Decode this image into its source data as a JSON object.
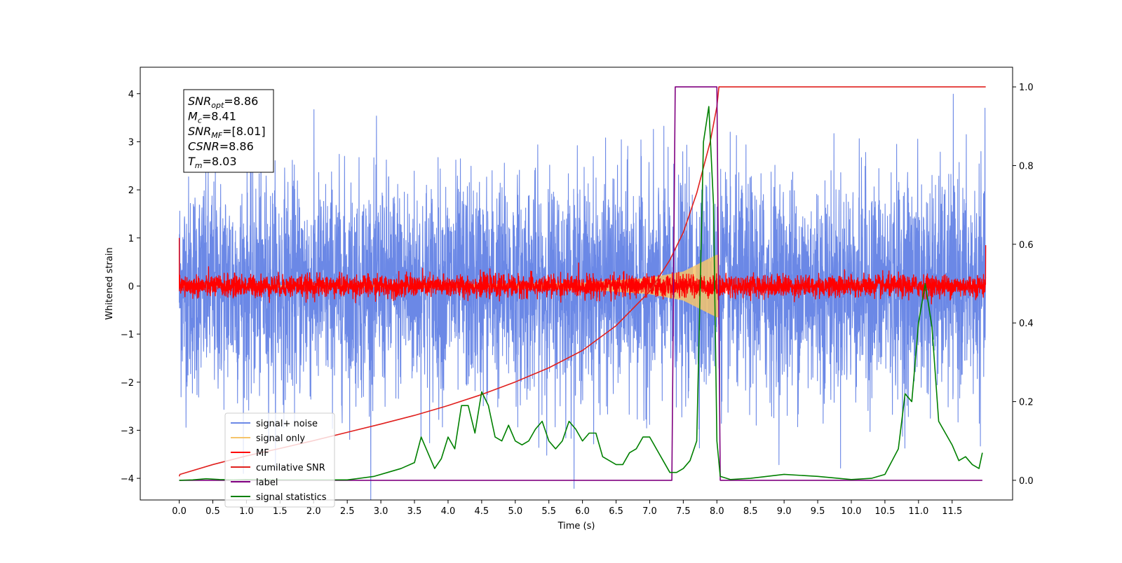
{
  "chart_data": {
    "type": "line",
    "title": "",
    "xlabel": "Time (s)",
    "ylabel": "Whitened strain",
    "y2label": "",
    "xlim": [
      -0.58,
      12.4
    ],
    "ylim": [
      -4.45,
      4.55
    ],
    "y2lim": [
      -0.05,
      1.05
    ],
    "x_ticks": [
      0.0,
      0.5,
      1.0,
      1.5,
      2.0,
      2.5,
      3.0,
      3.5,
      4.0,
      4.5,
      5.0,
      5.5,
      6.0,
      6.5,
      7.0,
      7.5,
      8.0,
      8.5,
      9.0,
      9.5,
      10.0,
      10.5,
      11.0,
      11.5
    ],
    "x_tick_labels": [
      "0.0",
      "0.5",
      "1.0",
      "1.5",
      "2.0",
      "2.5",
      "3.0",
      "3.5",
      "4.0",
      "4.5",
      "5.0",
      "5.5",
      "6.0",
      "6.5",
      "7.0",
      "7.5",
      "8.0",
      "8.5",
      "9.0",
      "9.5",
      "10.0",
      "10.5",
      "11.0",
      "11.5"
    ],
    "y_ticks": [
      -4,
      -3,
      -2,
      -1,
      0,
      1,
      2,
      3,
      4
    ],
    "y_tick_labels": [
      "−4",
      "−3",
      "−2",
      "−1",
      "0",
      "1",
      "2",
      "3",
      "4"
    ],
    "y2_ticks": [
      0.0,
      0.2,
      0.4,
      0.6,
      0.8,
      1.0
    ],
    "y2_tick_labels": [
      "0.0",
      "0.2",
      "0.4",
      "0.6",
      "0.8",
      "1.0"
    ],
    "grid": false,
    "legend_position": "lower-left",
    "annotation": {
      "position": "top-left",
      "lines": [
        {
          "sym": "SNR",
          "sub": "opt",
          "value": "=8.86"
        },
        {
          "sym": "M",
          "sub": "c",
          "value": "=8.41"
        },
        {
          "sym": "SNR",
          "sub": "MF",
          "value": "=[8.01]"
        },
        {
          "sym": "CSNR",
          "sub": "",
          "value": "=8.86"
        },
        {
          "sym": "T",
          "sub": "m",
          "value": "=8.03"
        }
      ]
    },
    "series": [
      {
        "name": "signal+ noise",
        "axis": "left",
        "color": "#6b88e6",
        "style": "noise",
        "x_range": [
          0.0,
          12.0
        ],
        "sigma": 1.0,
        "description_values": {
          "typical_peak": 2.5,
          "max": 4.2,
          "min": -3.8
        }
      },
      {
        "name": "signal only",
        "axis": "left",
        "color": "#f5c46b",
        "style": "chirp",
        "x_range": [
          0.0,
          8.03
        ],
        "envelope": {
          "x": [
            0.0,
            4.0,
            6.0,
            7.0,
            7.5,
            8.0
          ],
          "amp": [
            0.01,
            0.03,
            0.07,
            0.17,
            0.3,
            0.65
          ]
        }
      },
      {
        "name": "MF",
        "axis": "left",
        "color": "#ff0000",
        "style": "noise",
        "x_range": [
          0.0,
          12.0
        ],
        "sigma": 0.1,
        "start_value": 1.0,
        "end_value": 0.85
      },
      {
        "name": "cumilative SNR",
        "axis": "right",
        "color": "#e0201e",
        "x": [
          0.0,
          0.01,
          0.5,
          1.0,
          1.5,
          2.0,
          2.5,
          3.0,
          3.5,
          4.0,
          4.5,
          5.0,
          5.5,
          6.0,
          6.5,
          7.0,
          7.3,
          7.5,
          7.7,
          7.9,
          8.0,
          8.03,
          12.0
        ],
        "y": [
          0.01,
          0.015,
          0.04,
          0.062,
          0.081,
          0.101,
          0.122,
          0.143,
          0.165,
          0.19,
          0.218,
          0.25,
          0.286,
          0.33,
          0.393,
          0.48,
          0.56,
          0.63,
          0.73,
          0.86,
          0.95,
          1.0,
          1.0
        ]
      },
      {
        "name": "label",
        "axis": "right",
        "color": "#800080",
        "x": [
          0.0,
          7.33,
          7.38,
          8.0,
          8.05,
          11.95
        ],
        "y": [
          0.0,
          0.0,
          1.0,
          1.0,
          0.0,
          0.0
        ]
      },
      {
        "name": "signal statistics",
        "axis": "right",
        "color": "#008000",
        "x": [
          0.0,
          0.2,
          0.4,
          0.6,
          0.8,
          1.0,
          1.5,
          2.0,
          2.5,
          2.9,
          3.1,
          3.3,
          3.5,
          3.6,
          3.7,
          3.8,
          3.9,
          4.0,
          4.1,
          4.2,
          4.3,
          4.4,
          4.5,
          4.6,
          4.7,
          4.8,
          4.9,
          5.0,
          5.1,
          5.2,
          5.3,
          5.4,
          5.5,
          5.6,
          5.7,
          5.8,
          5.9,
          6.0,
          6.1,
          6.2,
          6.3,
          6.4,
          6.5,
          6.6,
          6.7,
          6.8,
          6.9,
          7.0,
          7.1,
          7.2,
          7.3,
          7.4,
          7.5,
          7.6,
          7.7,
          7.8,
          7.88,
          7.95,
          8.0,
          8.05,
          8.2,
          8.5,
          9.0,
          9.5,
          10.0,
          10.3,
          10.5,
          10.7,
          10.8,
          10.9,
          11.0,
          11.1,
          11.2,
          11.3,
          11.4,
          11.5,
          11.6,
          11.7,
          11.8,
          11.9,
          11.95
        ],
        "y": [
          0.0,
          0.001,
          0.004,
          0.002,
          0.001,
          0.002,
          0.001,
          0.001,
          0.001,
          0.01,
          0.02,
          0.03,
          0.045,
          0.11,
          0.07,
          0.03,
          0.055,
          0.11,
          0.08,
          0.19,
          0.19,
          0.12,
          0.225,
          0.19,
          0.11,
          0.1,
          0.14,
          0.1,
          0.09,
          0.1,
          0.13,
          0.15,
          0.1,
          0.08,
          0.1,
          0.15,
          0.13,
          0.1,
          0.12,
          0.12,
          0.06,
          0.05,
          0.04,
          0.04,
          0.07,
          0.08,
          0.11,
          0.11,
          0.08,
          0.05,
          0.02,
          0.02,
          0.03,
          0.05,
          0.1,
          0.86,
          0.95,
          0.7,
          0.1,
          0.01,
          0.002,
          0.005,
          0.015,
          0.01,
          0.002,
          0.005,
          0.015,
          0.08,
          0.22,
          0.2,
          0.4,
          0.5,
          0.39,
          0.15,
          0.12,
          0.09,
          0.05,
          0.06,
          0.04,
          0.03,
          0.07
        ]
      }
    ]
  }
}
